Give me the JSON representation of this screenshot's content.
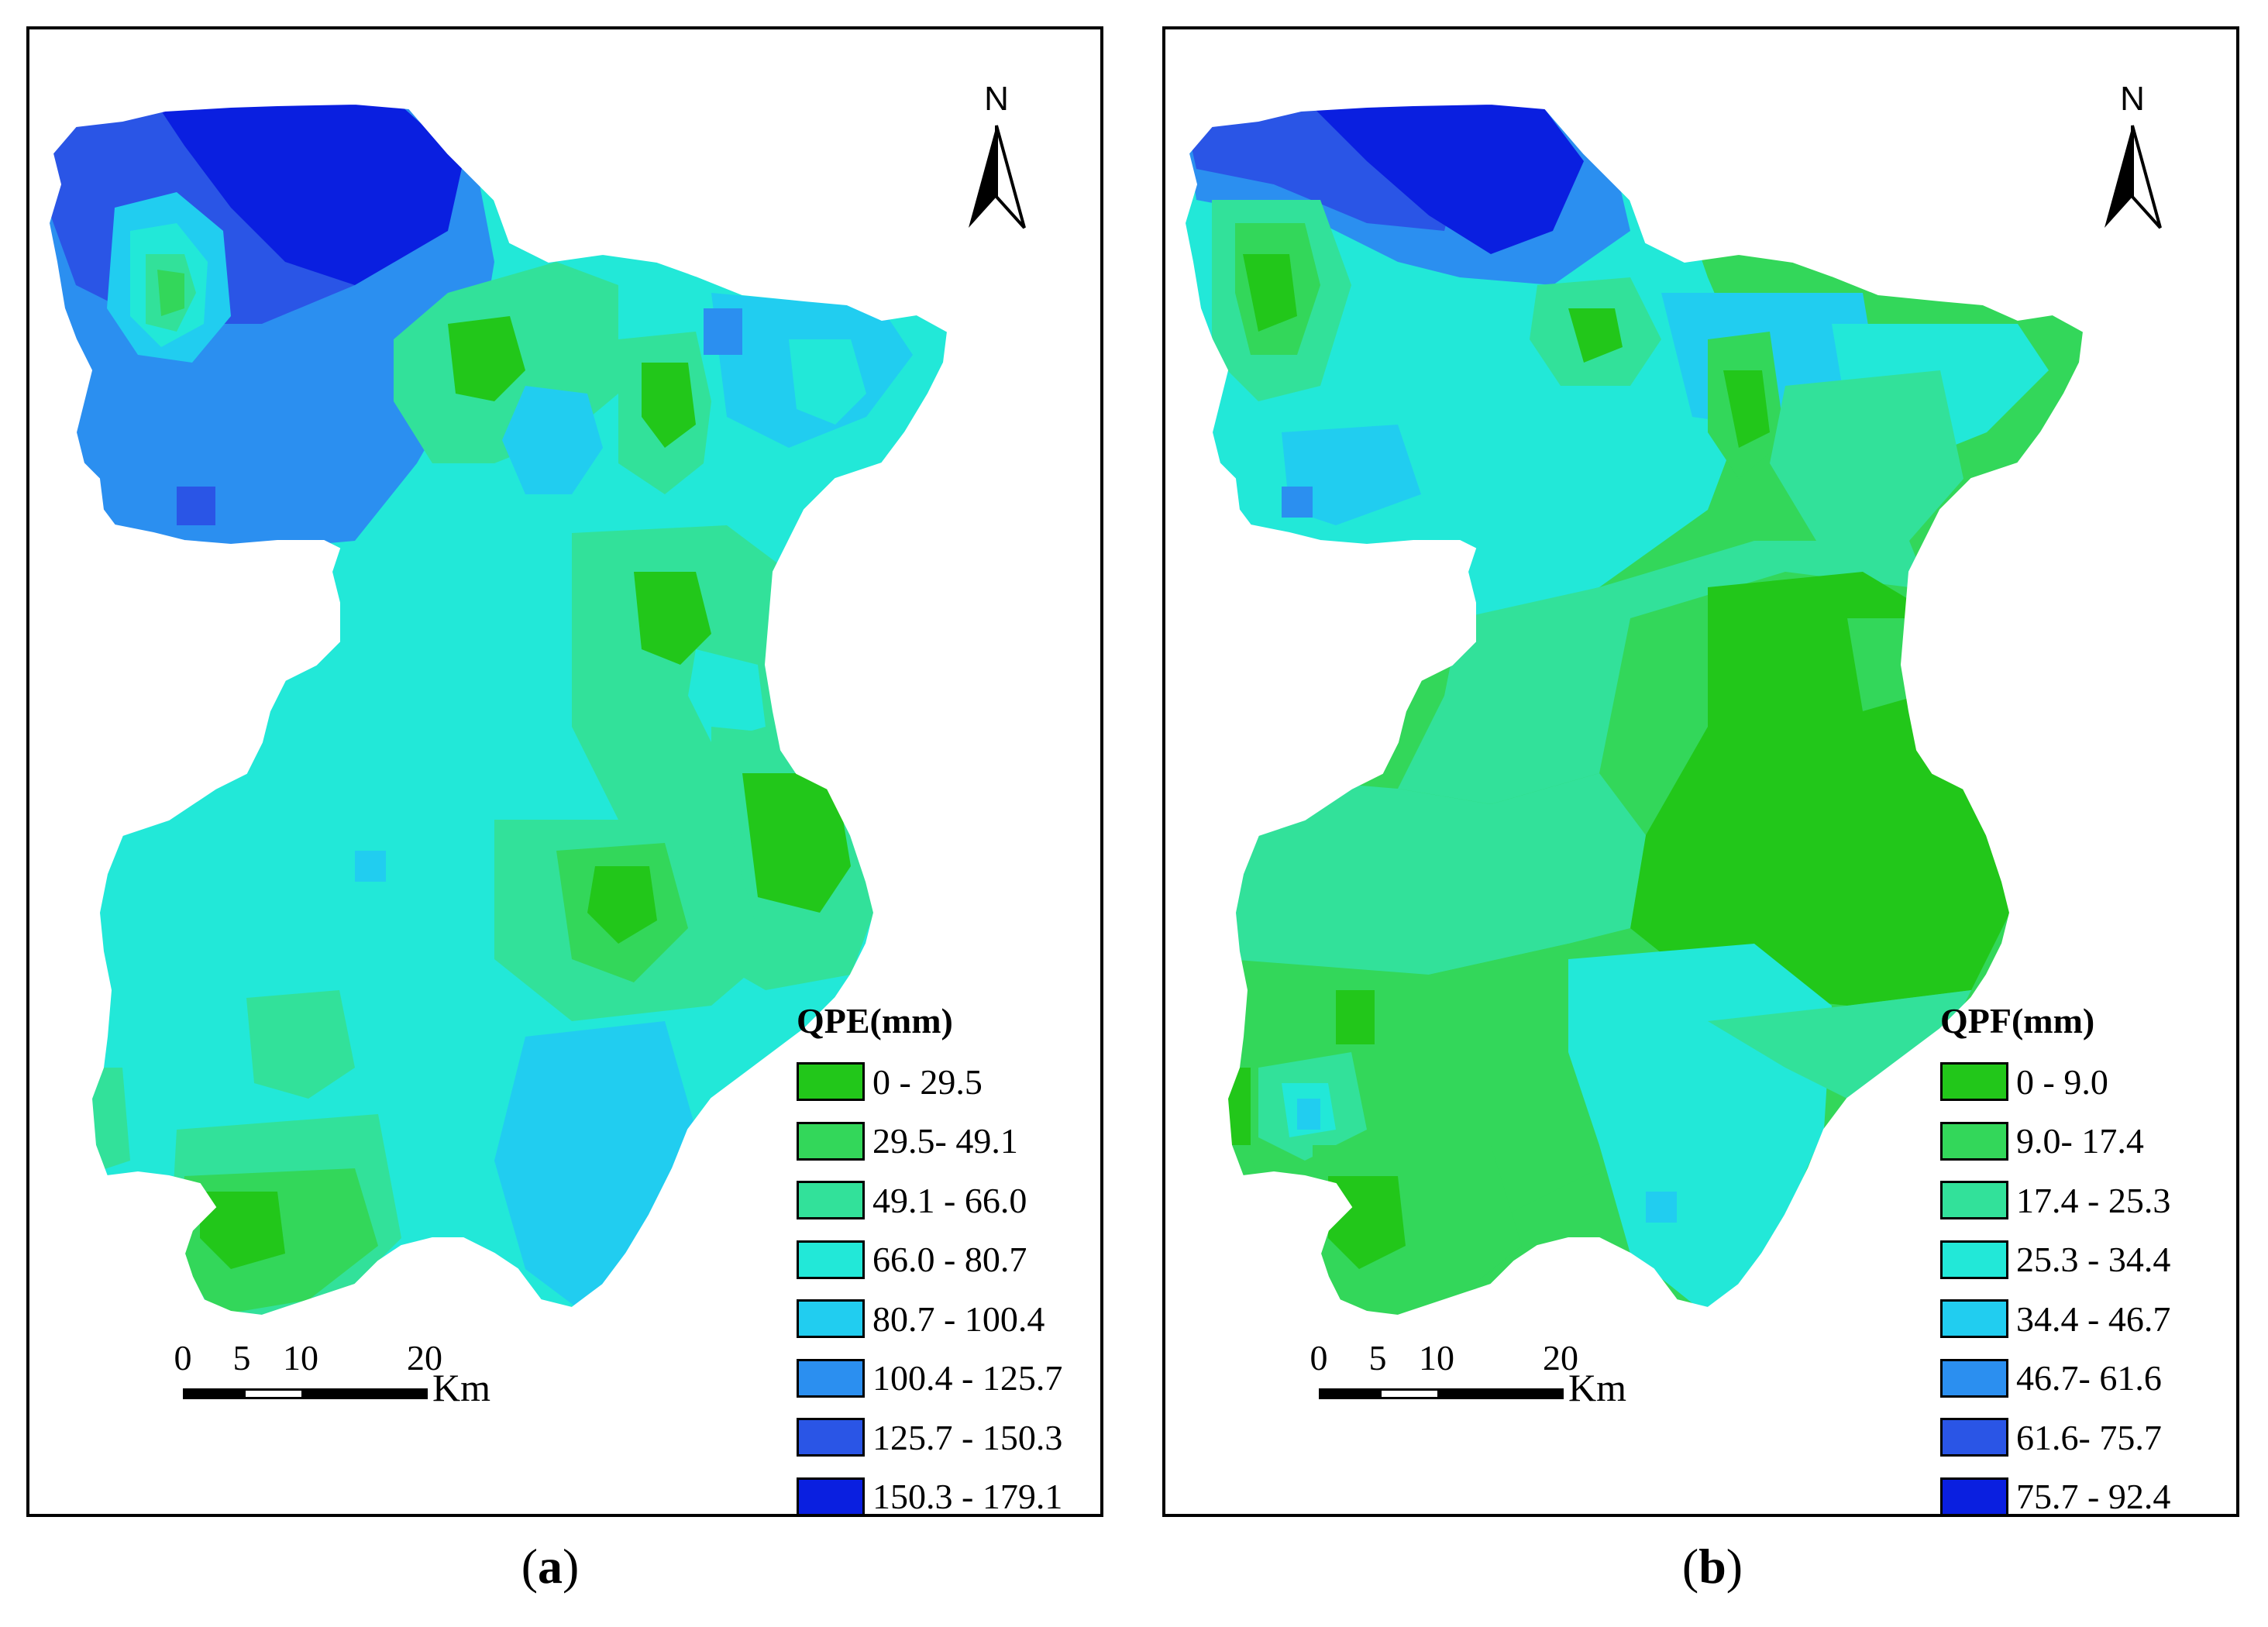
{
  "panels": [
    {
      "id": "a",
      "legend_title": "QPE(mm)",
      "legend": [
        {
          "label": "0 - 29.5",
          "color": "#22c71a"
        },
        {
          "label": "29.5- 49.1",
          "color": "#33d75a"
        },
        {
          "label": "49.1 - 66.0",
          "color": "#32e19a"
        },
        {
          "label": "66.0 - 80.7",
          "color": "#22e8d8"
        },
        {
          "label": "80.7 - 100.4",
          "color": "#21cdf0"
        },
        {
          "label": "100.4 - 125.7",
          "color": "#2b8ff0"
        },
        {
          "label": "125.7 - 150.3",
          "color": "#2a55e6"
        },
        {
          "label": "150.3 - 179.1",
          "color": "#0a1fe0"
        }
      ],
      "north_label": "N",
      "scale_ticks": [
        "0",
        "5",
        "10",
        "20"
      ],
      "scale_unit": "Km",
      "caption_open": "(",
      "caption_letter": "a",
      "caption_close": ")"
    },
    {
      "id": "b",
      "legend_title": "QPF(mm)",
      "legend": [
        {
          "label": "0 - 9.0",
          "color": "#22c71a"
        },
        {
          "label": "9.0- 17.4",
          "color": "#33d75a"
        },
        {
          "label": "17.4 - 25.3",
          "color": "#32e19a"
        },
        {
          "label": "25.3 - 34.4",
          "color": "#22e8d8"
        },
        {
          "label": "34.4 - 46.7",
          "color": "#21cdf0"
        },
        {
          "label": "46.7- 61.6",
          "color": "#2b8ff0"
        },
        {
          "label": "61.6- 75.7",
          "color": "#2a55e6"
        },
        {
          "label": "75.7 - 92.4",
          "color": "#0a1fe0"
        }
      ],
      "north_label": "N",
      "scale_ticks": [
        "0",
        "5",
        "10",
        "20"
      ],
      "scale_unit": "Km",
      "caption_open": "(",
      "caption_letter": "b",
      "caption_close": ")"
    }
  ]
}
